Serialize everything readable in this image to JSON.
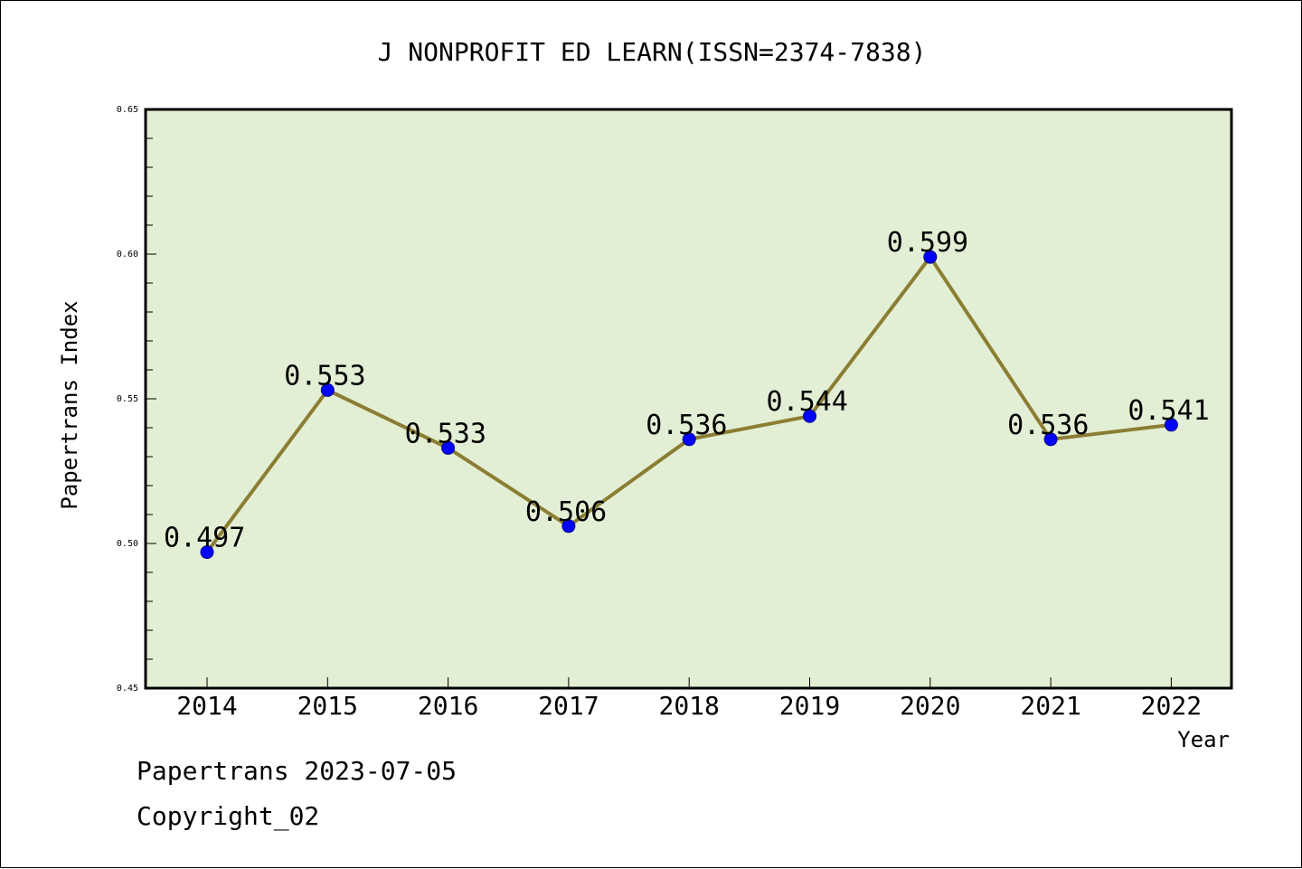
{
  "chart_data": {
    "type": "line",
    "title": "J NONPROFIT ED LEARN(ISSN=2374-7838)",
    "xlabel": "Year",
    "ylabel": "Papertrans Index",
    "categories": [
      "2014",
      "2015",
      "2016",
      "2017",
      "2018",
      "2019",
      "2020",
      "2021",
      "2022"
    ],
    "values": [
      0.497,
      0.553,
      0.533,
      0.506,
      0.536,
      0.544,
      0.599,
      0.536,
      0.541
    ],
    "data_labels": [
      "0.497",
      "0.553",
      "0.533",
      "0.506",
      "0.536",
      "0.544",
      "0.599",
      "0.536",
      "0.541"
    ],
    "ylim": [
      0.45,
      0.65
    ],
    "yticks": [
      "0.45",
      "0.50",
      "0.55",
      "0.60",
      "0.65"
    ],
    "grid": false,
    "legend": "none",
    "colors": {
      "plot_background": "#e2efd4",
      "line": "#8b7d33",
      "marker": "#0000ff"
    }
  },
  "footer": {
    "date_text": "Papertrans 2023-07-05",
    "copyright_text": "Copyright_02"
  }
}
